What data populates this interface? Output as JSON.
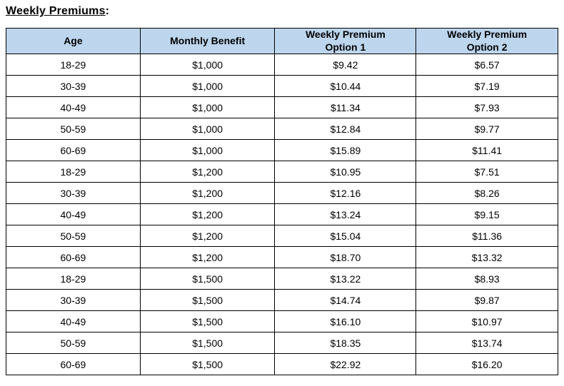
{
  "title": {
    "text": "Weekly Premiums",
    "suffix": ":"
  },
  "table": {
    "headers": [
      "Age",
      "Monthly Benefit",
      "Weekly Premium\nOption 1",
      "Weekly Premium\nOption 2"
    ],
    "rows": [
      [
        "18-29",
        "$1,000",
        "$9.42",
        "$6.57"
      ],
      [
        "30-39",
        "$1,000",
        "$10.44",
        "$7.19"
      ],
      [
        "40-49",
        "$1,000",
        "$11.34",
        "$7.93"
      ],
      [
        "50-59",
        "$1,000",
        "$12.84",
        "$9.77"
      ],
      [
        "60-69",
        "$1,000",
        "$15.89",
        "$11.41"
      ],
      [
        "18-29",
        "$1,200",
        "$10.95",
        "$7.51"
      ],
      [
        "30-39",
        "$1,200",
        "$12.16",
        "$8.26"
      ],
      [
        "40-49",
        "$1,200",
        "$13.24",
        "$9.15"
      ],
      [
        "50-59",
        "$1,200",
        "$15.04",
        "$11.36"
      ],
      [
        "60-69",
        "$1,200",
        "$18.70",
        "$13.32"
      ],
      [
        "18-29",
        "$1,500",
        "$13.22",
        "$8.93"
      ],
      [
        "30-39",
        "$1,500",
        "$14.74",
        "$9.87"
      ],
      [
        "40-49",
        "$1,500",
        "$16.10",
        "$10.97"
      ],
      [
        "50-59",
        "$1,500",
        "$18.35",
        "$13.74"
      ],
      [
        "60-69",
        "$1,500",
        "$22.92",
        "$16.20"
      ]
    ],
    "colors": {
      "header_bg": "#BDD6EE",
      "border": "#000000",
      "text": "#000000"
    }
  }
}
